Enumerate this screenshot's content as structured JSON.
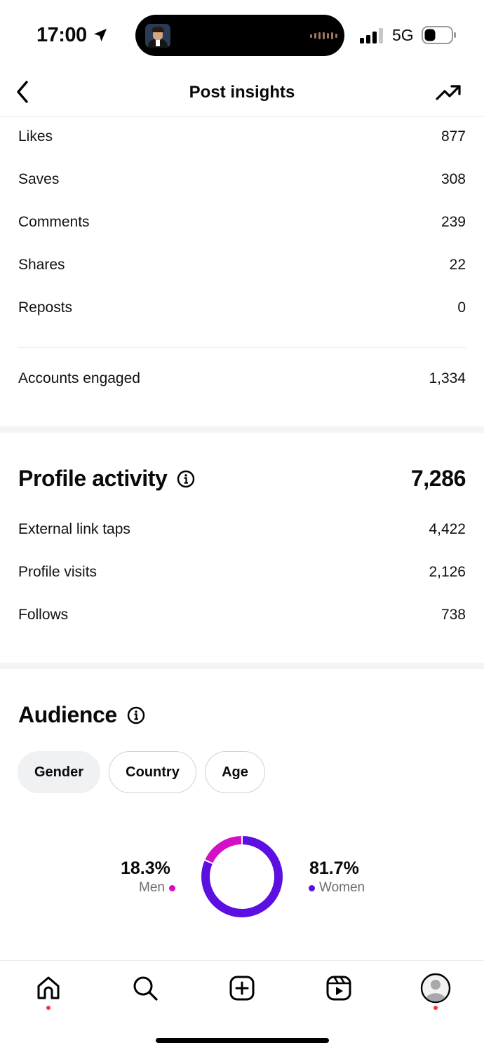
{
  "status_bar": {
    "time": "17:00",
    "network": "5G",
    "icons": [
      "location-arrow-icon",
      "signal-bars-icon",
      "battery-icon"
    ]
  },
  "header": {
    "title": "Post insights",
    "back_icon": "chevron-left-icon",
    "trend_icon": "trending-up-icon"
  },
  "interactions": [
    {
      "label": "Likes",
      "value": "877"
    },
    {
      "label": "Saves",
      "value": "308"
    },
    {
      "label": "Comments",
      "value": "239"
    },
    {
      "label": "Shares",
      "value": "22"
    },
    {
      "label": "Reposts",
      "value": "0"
    }
  ],
  "accounts_engaged": {
    "label": "Accounts engaged",
    "value": "1,334"
  },
  "profile_activity": {
    "title": "Profile activity",
    "total": "7,286",
    "rows": [
      {
        "label": "External link taps",
        "value": "4,422"
      },
      {
        "label": "Profile visits",
        "value": "2,126"
      },
      {
        "label": "Follows",
        "value": "738"
      }
    ]
  },
  "audience": {
    "title": "Audience",
    "tabs": [
      "Gender",
      "Country",
      "Age"
    ],
    "active_tab": "Gender"
  },
  "chart_data": {
    "type": "pie",
    "categories": [
      "Men",
      "Women"
    ],
    "values": [
      18.3,
      81.7
    ],
    "value_labels": [
      "18.3%",
      "81.7%"
    ],
    "colors": [
      "#d211c6",
      "#5b0fe0"
    ]
  },
  "tabbar": {
    "items": [
      "home-icon",
      "search-icon",
      "create-icon",
      "reels-icon",
      "profile-icon"
    ],
    "badge_color": "#ff3040"
  }
}
